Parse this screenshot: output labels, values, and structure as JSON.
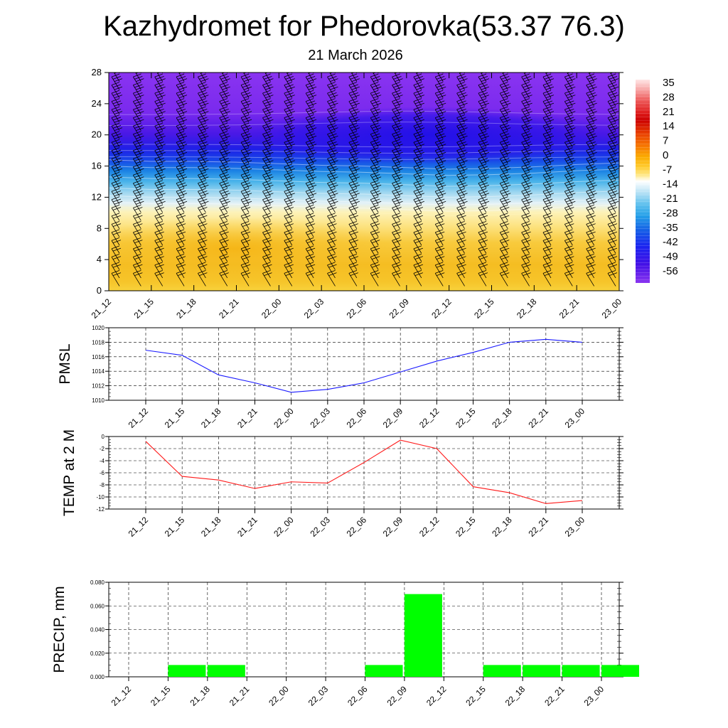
{
  "title": "Kazhydromet for Phedorovka(53.37 76.3)",
  "subtitle": "21 March 2026",
  "time_labels": [
    "21_12",
    "21_15",
    "21_18",
    "21_21",
    "22_00",
    "22_03",
    "22_06",
    "22_09",
    "22_12",
    "22_15",
    "22_18",
    "22_21",
    "23_00"
  ],
  "colors": {
    "pmsl_line": "#1a1aff",
    "temp_line": "#ff1a1a",
    "precip_bar": "#00ff00",
    "barb": "#000000",
    "grid": "#000000"
  },
  "chart_data": [
    {
      "id": "cross_section",
      "type": "heatmap",
      "title": "Kazhydromet for Phedorovka(53.37 76.3)",
      "subtitle": "21 March 2026",
      "yticks": [
        0,
        4,
        8,
        12,
        16,
        20,
        24,
        28
      ],
      "ylim": [
        0,
        28
      ],
      "xlabels": [
        "21_12",
        "21_15",
        "21_18",
        "21_21",
        "22_00",
        "22_03",
        "22_06",
        "22_09",
        "22_12",
        "22_15",
        "22_18",
        "22_21",
        "23_00"
      ],
      "colorbar_labels": [
        "35",
        "28",
        "21",
        "14",
        "7",
        "0",
        "-7",
        "-14",
        "-21",
        "-28",
        "-35",
        "-42",
        "-49",
        "-56"
      ],
      "colorbar_colors": [
        "#ffffff",
        "#ffc6c6",
        "#f89d9d",
        "#ef5a5a",
        "#e52222",
        "#cc0000",
        "#e83a00",
        "#f56e00",
        "#fba400",
        "#ffc000",
        "#ffd838",
        "#ffeb7a",
        "#fff6b8",
        "#ffffff",
        "#c2e6f6",
        "#7ecdf0",
        "#3fb1ea",
        "#1a86e4",
        "#1458e6",
        "#1a2af2",
        "#2008e6",
        "#3a00e0",
        "#5a10e8",
        "#7a2cf0",
        "#9a3cf2"
      ],
      "features": {
        "warm_layer_top_km": [
          10.8,
          10.6,
          10.6,
          10.5,
          10.3,
          10.1,
          10.0,
          9.8,
          9.6,
          9.7,
          9.9,
          10.2,
          10.4
        ],
        "cold_core_km": 20,
        "cold_core_center": "22_09"
      },
      "wind_barbs": "shown at every column and level"
    },
    {
      "id": "pmsl",
      "type": "line",
      "ylabel": "PMSL",
      "ylim": [
        1010,
        1020
      ],
      "yticks": [
        1010,
        1012,
        1014,
        1016,
        1018,
        1020
      ],
      "categories": [
        "21_12",
        "21_15",
        "21_18",
        "21_21",
        "22_00",
        "22_03",
        "22_06",
        "22_09",
        "22_12",
        "22_15",
        "22_18",
        "22_21",
        "23_00"
      ],
      "values": [
        1016.9,
        1016.2,
        1013.5,
        1012.4,
        1011.1,
        1011.5,
        1012.4,
        1013.9,
        1015.4,
        1016.6,
        1018.0,
        1018.4,
        1018.0
      ]
    },
    {
      "id": "temp",
      "type": "line",
      "ylabel": "TEMP at 2 M",
      "ylim": [
        -12,
        0
      ],
      "yticks": [
        -12,
        -10,
        -8,
        -6,
        -4,
        -2,
        0
      ],
      "categories": [
        "21_12",
        "21_15",
        "21_18",
        "21_21",
        "22_00",
        "22_03",
        "22_06",
        "22_09",
        "22_12",
        "22_15",
        "22_18",
        "22_21",
        "23_00"
      ],
      "values": [
        -0.8,
        -6.6,
        -7.2,
        -8.6,
        -7.5,
        -7.7,
        -4.3,
        -0.6,
        -2.0,
        -8.3,
        -9.3,
        -11.1,
        -10.6
      ]
    },
    {
      "id": "precip",
      "type": "bar",
      "ylabel": "PRECIP, mm",
      "ylim": [
        0,
        0.08
      ],
      "yticks": [
        "0.000",
        "0.020",
        "0.040",
        "0.060",
        "0.080"
      ],
      "categories": [
        "21_12",
        "21_15",
        "21_18",
        "21_21",
        "22_00",
        "22_03",
        "22_06",
        "22_09",
        "22_12",
        "22_15",
        "22_18",
        "22_21",
        "23_00"
      ],
      "values": [
        0,
        0.01,
        0.01,
        0,
        0,
        0,
        0.01,
        0.07,
        0,
        0.01,
        0.01,
        0.01,
        0.01
      ]
    }
  ]
}
